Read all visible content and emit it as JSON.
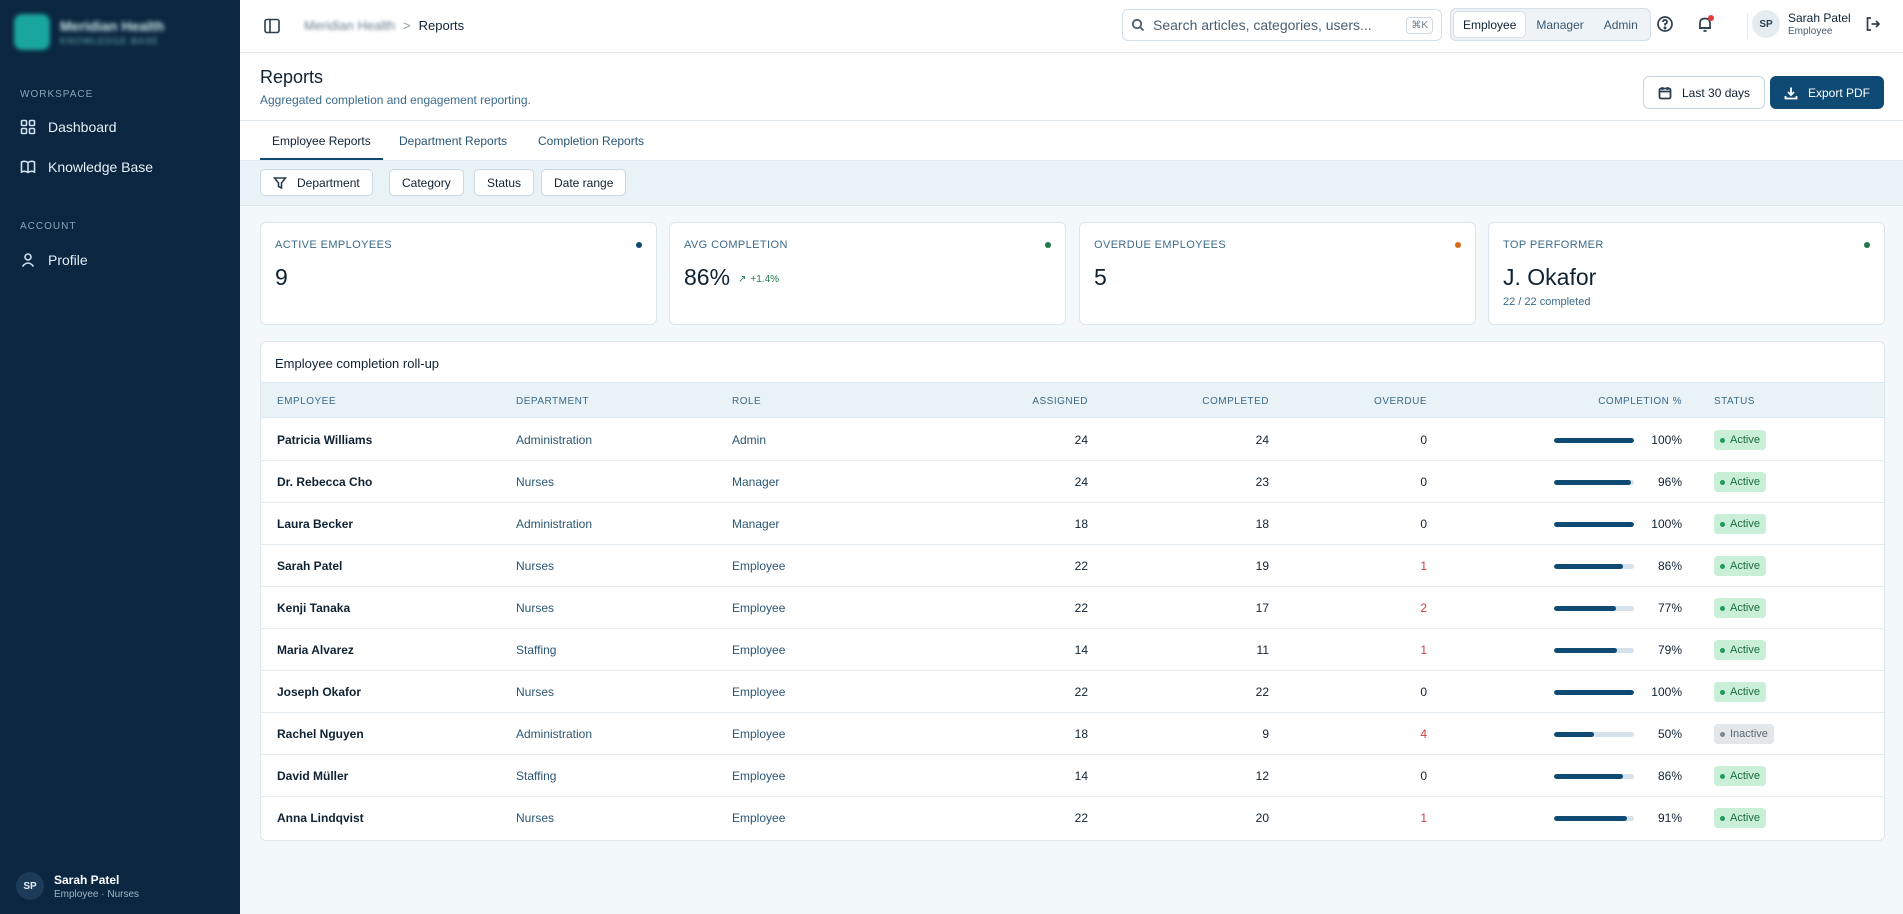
{
  "sidebar": {
    "brand": {
      "name": "Meridian Health",
      "sub": "KNOWLEDGE BASE"
    },
    "sections": [
      {
        "title": "WORKSPACE",
        "items": [
          {
            "label": "Dashboard",
            "icon": "grid-icon"
          },
          {
            "label": "Knowledge Base",
            "icon": "book-icon"
          }
        ]
      },
      {
        "title": "ACCOUNT",
        "items": [
          {
            "label": "Profile",
            "icon": "user-icon"
          }
        ]
      }
    ],
    "user": {
      "initials": "SP",
      "name": "Sarah Patel",
      "sub": "Employee · Nurses"
    }
  },
  "topbar": {
    "breadcrumb": {
      "root": "Meridian Health",
      "separator": ">",
      "current": "Reports"
    },
    "search": {
      "placeholder": "Search articles, categories, users...",
      "shortcut": "⌘K"
    },
    "roles": [
      "Employee",
      "Manager",
      "Admin"
    ],
    "active_role": "Employee",
    "user": {
      "initials": "SP",
      "name": "Sarah Patel",
      "role": "Employee"
    }
  },
  "page": {
    "title": "Reports",
    "subtitle": "Aggregated completion and engagement reporting.",
    "date_range_label": "Last 30 days",
    "export_label": "Export PDF"
  },
  "tabs": [
    "Employee Reports",
    "Department Reports",
    "Completion Reports"
  ],
  "filters": [
    "Department",
    "Category",
    "Status",
    "Date range"
  ],
  "kpis": [
    {
      "label": "ACTIVE EMPLOYEES",
      "value": "9",
      "dot_color": "#0f4a75"
    },
    {
      "label": "AVG COMPLETION",
      "value": "86%",
      "delta": "+1.4%",
      "dot_color": "#1f7a4b"
    },
    {
      "label": "OVERDUE EMPLOYEES",
      "value": "5",
      "dot_color": "#d46a1a"
    },
    {
      "label": "TOP PERFORMER",
      "value": "J. Okafor",
      "sub": "22 / 22 completed",
      "dot_color": "#1f7a4b"
    }
  ],
  "table": {
    "title": "Employee completion roll-up",
    "headers": [
      "EMPLOYEE",
      "DEPARTMENT",
      "ROLE",
      "ASSIGNED",
      "COMPLETED",
      "OVERDUE",
      "COMPLETION %",
      "STATUS"
    ],
    "rows": [
      {
        "employee": "Patricia Williams",
        "department": "Administration",
        "role": "Admin",
        "assigned": "24",
        "completed": "24",
        "overdue": "0",
        "pct": "100%",
        "pct_value": 100,
        "status": "Active"
      },
      {
        "employee": "Dr. Rebecca Cho",
        "department": "Nurses",
        "role": "Manager",
        "assigned": "24",
        "completed": "23",
        "overdue": "0",
        "pct": "96%",
        "pct_value": 96,
        "status": "Active"
      },
      {
        "employee": "Laura Becker",
        "department": "Administration",
        "role": "Manager",
        "assigned": "18",
        "completed": "18",
        "overdue": "0",
        "pct": "100%",
        "pct_value": 100,
        "status": "Active"
      },
      {
        "employee": "Sarah Patel",
        "department": "Nurses",
        "role": "Employee",
        "assigned": "22",
        "completed": "19",
        "overdue": "1",
        "pct": "86%",
        "pct_value": 86,
        "status": "Active"
      },
      {
        "employee": "Kenji Tanaka",
        "department": "Nurses",
        "role": "Employee",
        "assigned": "22",
        "completed": "17",
        "overdue": "2",
        "pct": "77%",
        "pct_value": 77,
        "status": "Active"
      },
      {
        "employee": "Maria Alvarez",
        "department": "Staffing",
        "role": "Employee",
        "assigned": "14",
        "completed": "11",
        "overdue": "1",
        "pct": "79%",
        "pct_value": 79,
        "status": "Active"
      },
      {
        "employee": "Joseph Okafor",
        "department": "Nurses",
        "role": "Employee",
        "assigned": "22",
        "completed": "22",
        "overdue": "0",
        "pct": "100%",
        "pct_value": 100,
        "status": "Active"
      },
      {
        "employee": "Rachel Nguyen",
        "department": "Administration",
        "role": "Employee",
        "assigned": "18",
        "completed": "9",
        "overdue": "4",
        "pct": "50%",
        "pct_value": 50,
        "status": "Inactive"
      },
      {
        "employee": "David Müller",
        "department": "Staffing",
        "role": "Employee",
        "assigned": "14",
        "completed": "12",
        "overdue": "0",
        "pct": "86%",
        "pct_value": 86,
        "status": "Active"
      },
      {
        "employee": "Anna Lindqvist",
        "department": "Nurses",
        "role": "Employee",
        "assigned": "22",
        "completed": "20",
        "overdue": "1",
        "pct": "91%",
        "pct_value": 91,
        "status": "Active"
      }
    ]
  },
  "colors": {
    "sidebar_bg": "#0b2640",
    "primary": "#0f4a75",
    "overdue_red": "#d63a3a",
    "active_green": "#1f9a5a"
  }
}
